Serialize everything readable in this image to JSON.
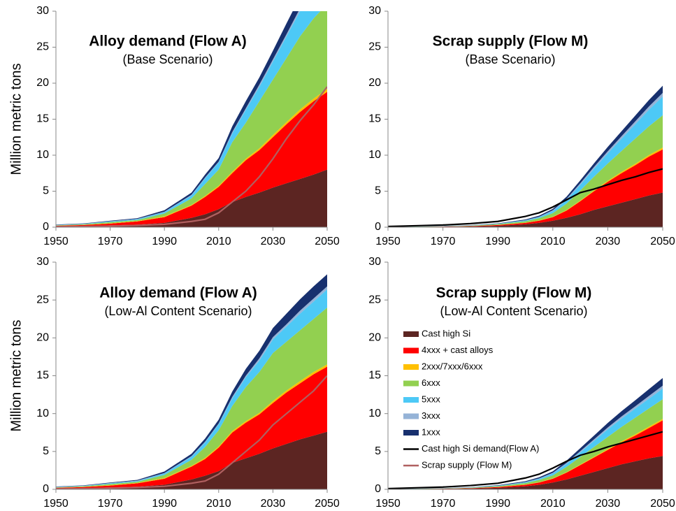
{
  "chart_data": [
    {
      "type": "area",
      "title": "Alloy demand (Flow A)",
      "subtitle": "(Base Scenario)",
      "ylabel": "Million metric tons",
      "x": [
        1950,
        1960,
        1970,
        1980,
        1990,
        2000,
        2005,
        2010,
        2015,
        2020,
        2025,
        2030,
        2035,
        2040,
        2045,
        2050
      ],
      "xlim": [
        1950,
        2050
      ],
      "xticks": [
        1950,
        1970,
        1990,
        2010,
        2030,
        2050
      ],
      "ylim": [
        0,
        30
      ],
      "yticks": [
        0,
        5,
        10,
        15,
        20,
        25,
        30
      ],
      "legend": false,
      "series": [
        {
          "name": "Cast high Si",
          "color": "#5c2522",
          "kind": "area",
          "values": [
            0.1,
            0.15,
            0.25,
            0.35,
            0.6,
            1.3,
            1.8,
            2.5,
            3.5,
            4.2,
            4.8,
            5.5,
            6.1,
            6.7,
            7.3,
            8
          ]
        },
        {
          "name": "4xxx + cast alloys",
          "color": "#ff0000",
          "kind": "area",
          "values": [
            0.1,
            0.15,
            0.25,
            0.45,
            0.8,
            1.7,
            2.4,
            3.1,
            4.0,
            5.1,
            5.9,
            7.0,
            8.2,
            9.3,
            10.2,
            10.8
          ]
        },
        {
          "name": "2xxx/7xxx/6xxx",
          "color": "#ffc000",
          "kind": "area",
          "values": [
            0.02,
            0.03,
            0.05,
            0.05,
            0.1,
            0.1,
            0.15,
            0.15,
            0.2,
            0.2,
            0.25,
            0.3,
            0.3,
            0.35,
            0.35,
            0.4
          ]
        },
        {
          "name": "6xxx",
          "color": "#92d050",
          "kind": "area",
          "values": [
            0.03,
            0.07,
            0.15,
            0.15,
            0.4,
            0.9,
            1.65,
            2.25,
            4.1,
            5.0,
            6.55,
            7.7,
            8.9,
            10.15,
            11.15,
            11.8
          ]
        },
        {
          "name": "5xxx",
          "color": "#4dc9f6",
          "kind": "area",
          "values": [
            0.05,
            0.05,
            0.1,
            0.1,
            0.2,
            0.4,
            0.8,
            1.0,
            1.2,
            1.8,
            2.0,
            2.5,
            3.0,
            3.5,
            4.0,
            4.0
          ]
        },
        {
          "name": "3xxx",
          "color": "#95b3d7",
          "kind": "area",
          "values": [
            0.02,
            0.02,
            0.03,
            0.05,
            0.05,
            0.1,
            0.1,
            0.1,
            0.2,
            0.2,
            0.3,
            0.3,
            0.3,
            0.4,
            0.4,
            0.4
          ]
        },
        {
          "name": "1xxx",
          "color": "#17306e",
          "kind": "area",
          "values": [
            0.05,
            0.05,
            0.07,
            0.1,
            0.2,
            0.3,
            0.4,
            0.5,
            0.8,
            1.0,
            1.0,
            1.2,
            1.5,
            1.6,
            1.6,
            1.6
          ]
        },
        {
          "name": "Scrap supply (Flow M)",
          "color": "#b06060",
          "kind": "line",
          "values": [
            0.05,
            0.1,
            0.15,
            0.25,
            0.4,
            0.8,
            1.1,
            2.0,
            3.5,
            5,
            7,
            9.5,
            12.3,
            14.8,
            17,
            19.5
          ]
        }
      ]
    },
    {
      "type": "area",
      "title": "Scrap supply (Flow M)",
      "subtitle": "(Base Scenario)",
      "x": [
        1950,
        1960,
        1970,
        1980,
        1990,
        2000,
        2005,
        2010,
        2015,
        2020,
        2025,
        2030,
        2035,
        2040,
        2045,
        2050
      ],
      "xlim": [
        1950,
        2050
      ],
      "xticks": [
        1950,
        1970,
        1990,
        2010,
        2030,
        2050
      ],
      "ylim": [
        0,
        30
      ],
      "yticks": [
        0,
        5,
        10,
        15,
        20,
        25,
        30
      ],
      "legend": false,
      "series": [
        {
          "name": "Cast high Si",
          "color": "#5c2522",
          "kind": "area",
          "values": [
            0.02,
            0.03,
            0.05,
            0.1,
            0.2,
            0.4,
            0.6,
            0.9,
            1.3,
            1.8,
            2.4,
            2.9,
            3.4,
            3.9,
            4.4,
            4.8
          ]
        },
        {
          "name": "4xxx + cast alloys",
          "color": "#ff0000",
          "kind": "area",
          "values": [
            0.01,
            0.02,
            0.03,
            0.05,
            0.1,
            0.2,
            0.3,
            0.5,
            1.0,
            1.8,
            2.6,
            3.4,
            4.1,
            4.7,
            5.4,
            6.0
          ]
        },
        {
          "name": "2xxx/7xxx/6xxx",
          "color": "#ffc000",
          "kind": "area",
          "values": [
            0,
            0,
            0,
            0.01,
            0.02,
            0.03,
            0.05,
            0.05,
            0.08,
            0.1,
            0.12,
            0.15,
            0.18,
            0.2,
            0.22,
            0.25
          ]
        },
        {
          "name": "6xxx",
          "color": "#92d050",
          "kind": "area",
          "values": [
            0.01,
            0.02,
            0.03,
            0.05,
            0.1,
            0.2,
            0.3,
            0.5,
            0.9,
            1.4,
            1.9,
            2.4,
            2.9,
            3.5,
            4.0,
            4.5
          ]
        },
        {
          "name": "5xxx",
          "color": "#4dc9f6",
          "kind": "area",
          "values": [
            0.01,
            0.01,
            0.02,
            0.03,
            0.05,
            0.1,
            0.15,
            0.3,
            0.5,
            0.8,
            1.1,
            1.4,
            1.7,
            2.0,
            2.3,
            2.6
          ]
        },
        {
          "name": "3xxx",
          "color": "#95b3d7",
          "kind": "area",
          "values": [
            0,
            0,
            0.01,
            0.01,
            0.02,
            0.04,
            0.05,
            0.1,
            0.15,
            0.2,
            0.25,
            0.3,
            0.35,
            0.4,
            0.45,
            0.5
          ]
        },
        {
          "name": "1xxx",
          "color": "#17306e",
          "kind": "area",
          "values": [
            0.01,
            0.01,
            0.02,
            0.03,
            0.05,
            0.1,
            0.15,
            0.2,
            0.3,
            0.4,
            0.5,
            0.6,
            0.7,
            0.8,
            0.9,
            1.0
          ]
        },
        {
          "name": "Cast high Si demand(Flow A)",
          "color": "#000000",
          "kind": "line",
          "values": [
            0.1,
            0.2,
            0.3,
            0.5,
            0.8,
            1.5,
            2,
            2.8,
            3.8,
            4.8,
            5.3,
            5.9,
            6.5,
            7.0,
            7.6,
            8.1
          ]
        }
      ]
    },
    {
      "type": "area",
      "title": "Alloy demand (Flow A)",
      "subtitle": "(Low-Al Content Scenario)",
      "ylabel": "Million metric tons",
      "x": [
        1950,
        1960,
        1970,
        1980,
        1990,
        2000,
        2005,
        2010,
        2015,
        2020,
        2025,
        2030,
        2035,
        2040,
        2045,
        2050
      ],
      "xlim": [
        1950,
        2050
      ],
      "xticks": [
        1950,
        1970,
        1990,
        2010,
        2030,
        2050
      ],
      "ylim": [
        0,
        30
      ],
      "yticks": [
        0,
        5,
        10,
        15,
        20,
        25,
        30
      ],
      "legend": false,
      "series": [
        {
          "name": "Cast high Si",
          "color": "#5c2522",
          "kind": "area",
          "values": [
            0.1,
            0.15,
            0.25,
            0.35,
            0.6,
            1.3,
            1.8,
            2.4,
            3.5,
            4.1,
            4.7,
            5.4,
            6.0,
            6.6,
            7.1,
            7.6
          ]
        },
        {
          "name": "4xxx + cast alloys",
          "color": "#ff0000",
          "kind": "area",
          "values": [
            0.1,
            0.15,
            0.25,
            0.45,
            0.8,
            1.7,
            2.2,
            3.1,
            4.0,
            4.7,
            5.2,
            6.0,
            6.8,
            7.4,
            8.1,
            8.6
          ]
        },
        {
          "name": "2xxx/7xxx/6xxx",
          "color": "#ffc000",
          "kind": "area",
          "values": [
            0.02,
            0.03,
            0.05,
            0.05,
            0.1,
            0.1,
            0.15,
            0.15,
            0.2,
            0.2,
            0.2,
            0.25,
            0.25,
            0.3,
            0.3,
            0.3
          ]
        },
        {
          "name": "6xxx",
          "color": "#92d050",
          "kind": "area",
          "values": [
            0.03,
            0.07,
            0.15,
            0.15,
            0.4,
            0.8,
            1.45,
            2.15,
            3.3,
            4.5,
            5.4,
            6.35,
            6.45,
            6.7,
            7.0,
            7.5
          ]
        },
        {
          "name": "5xxx",
          "color": "#4dc9f6",
          "kind": "area",
          "values": [
            0.05,
            0.05,
            0.1,
            0.1,
            0.2,
            0.4,
            0.6,
            0.8,
            1.0,
            1.3,
            1.5,
            1.8,
            2.0,
            2.2,
            2.3,
            2.4
          ]
        },
        {
          "name": "3xxx",
          "color": "#95b3d7",
          "kind": "area",
          "values": [
            0.02,
            0.02,
            0.03,
            0.05,
            0.05,
            0.1,
            0.1,
            0.1,
            0.2,
            0.2,
            0.3,
            0.3,
            0.3,
            0.4,
            0.4,
            0.4
          ]
        },
        {
          "name": "1xxx",
          "color": "#17306e",
          "kind": "area",
          "values": [
            0.05,
            0.05,
            0.07,
            0.1,
            0.2,
            0.3,
            0.4,
            0.5,
            0.7,
            0.9,
            1.0,
            1.2,
            1.4,
            1.5,
            1.6,
            1.6
          ]
        },
        {
          "name": "Scrap supply (Flow M)",
          "color": "#b06060",
          "kind": "line",
          "values": [
            0.05,
            0.1,
            0.15,
            0.25,
            0.4,
            0.8,
            1.1,
            2.0,
            3.5,
            5,
            6.5,
            8.5,
            10,
            11.5,
            13,
            15
          ]
        }
      ]
    },
    {
      "type": "area",
      "title": "Scrap supply (Flow M)",
      "subtitle": "(Low-Al Content Scenario)",
      "x": [
        1950,
        1960,
        1970,
        1980,
        1990,
        2000,
        2005,
        2010,
        2015,
        2020,
        2025,
        2030,
        2035,
        2040,
        2045,
        2050
      ],
      "xlim": [
        1950,
        2050
      ],
      "xticks": [
        1950,
        1970,
        1990,
        2010,
        2030,
        2050
      ],
      "ylim": [
        0,
        30
      ],
      "yticks": [
        0,
        5,
        10,
        15,
        20,
        25,
        30
      ],
      "legend": "center-left",
      "series": [
        {
          "name": "Cast high Si",
          "color": "#5c2522",
          "kind": "area",
          "values": [
            0.02,
            0.03,
            0.05,
            0.1,
            0.2,
            0.4,
            0.6,
            0.9,
            1.3,
            1.8,
            2.3,
            2.8,
            3.3,
            3.7,
            4.1,
            4.4
          ]
        },
        {
          "name": "4xxx + cast alloys",
          "color": "#ff0000",
          "kind": "area",
          "values": [
            0.01,
            0.02,
            0.03,
            0.05,
            0.1,
            0.2,
            0.3,
            0.5,
            0.9,
            1.4,
            1.9,
            2.4,
            2.9,
            3.4,
            4.0,
            4.7
          ]
        },
        {
          "name": "2xxx/7xxx/6xxx",
          "color": "#ffc000",
          "kind": "area",
          "values": [
            0,
            0,
            0,
            0.01,
            0.02,
            0.03,
            0.04,
            0.05,
            0.06,
            0.08,
            0.1,
            0.12,
            0.14,
            0.16,
            0.18,
            0.2
          ]
        },
        {
          "name": "6xxx",
          "color": "#92d050",
          "kind": "area",
          "values": [
            0.01,
            0.02,
            0.03,
            0.05,
            0.1,
            0.2,
            0.3,
            0.4,
            0.7,
            1.0,
            1.3,
            1.6,
            1.9,
            2.2,
            2.4,
            2.6
          ]
        },
        {
          "name": "5xxx",
          "color": "#4dc9f6",
          "kind": "area",
          "values": [
            0.01,
            0.01,
            0.02,
            0.03,
            0.05,
            0.1,
            0.15,
            0.25,
            0.4,
            0.6,
            0.8,
            1.0,
            1.1,
            1.2,
            1.3,
            1.4
          ]
        },
        {
          "name": "3xxx",
          "color": "#95b3d7",
          "kind": "area",
          "values": [
            0,
            0,
            0.01,
            0.01,
            0.02,
            0.04,
            0.05,
            0.08,
            0.12,
            0.16,
            0.2,
            0.25,
            0.28,
            0.3,
            0.35,
            0.4
          ]
        },
        {
          "name": "1xxx",
          "color": "#17306e",
          "kind": "area",
          "values": [
            0.01,
            0.01,
            0.02,
            0.03,
            0.05,
            0.1,
            0.15,
            0.2,
            0.3,
            0.4,
            0.5,
            0.6,
            0.7,
            0.8,
            0.9,
            1.0
          ]
        },
        {
          "name": "Cast high Si demand(Flow A)",
          "color": "#000000",
          "kind": "line",
          "values": [
            0.1,
            0.2,
            0.3,
            0.5,
            0.8,
            1.5,
            2,
            2.8,
            3.7,
            4.5,
            5.0,
            5.6,
            6.1,
            6.6,
            7.1,
            7.6
          ]
        }
      ]
    }
  ]
}
